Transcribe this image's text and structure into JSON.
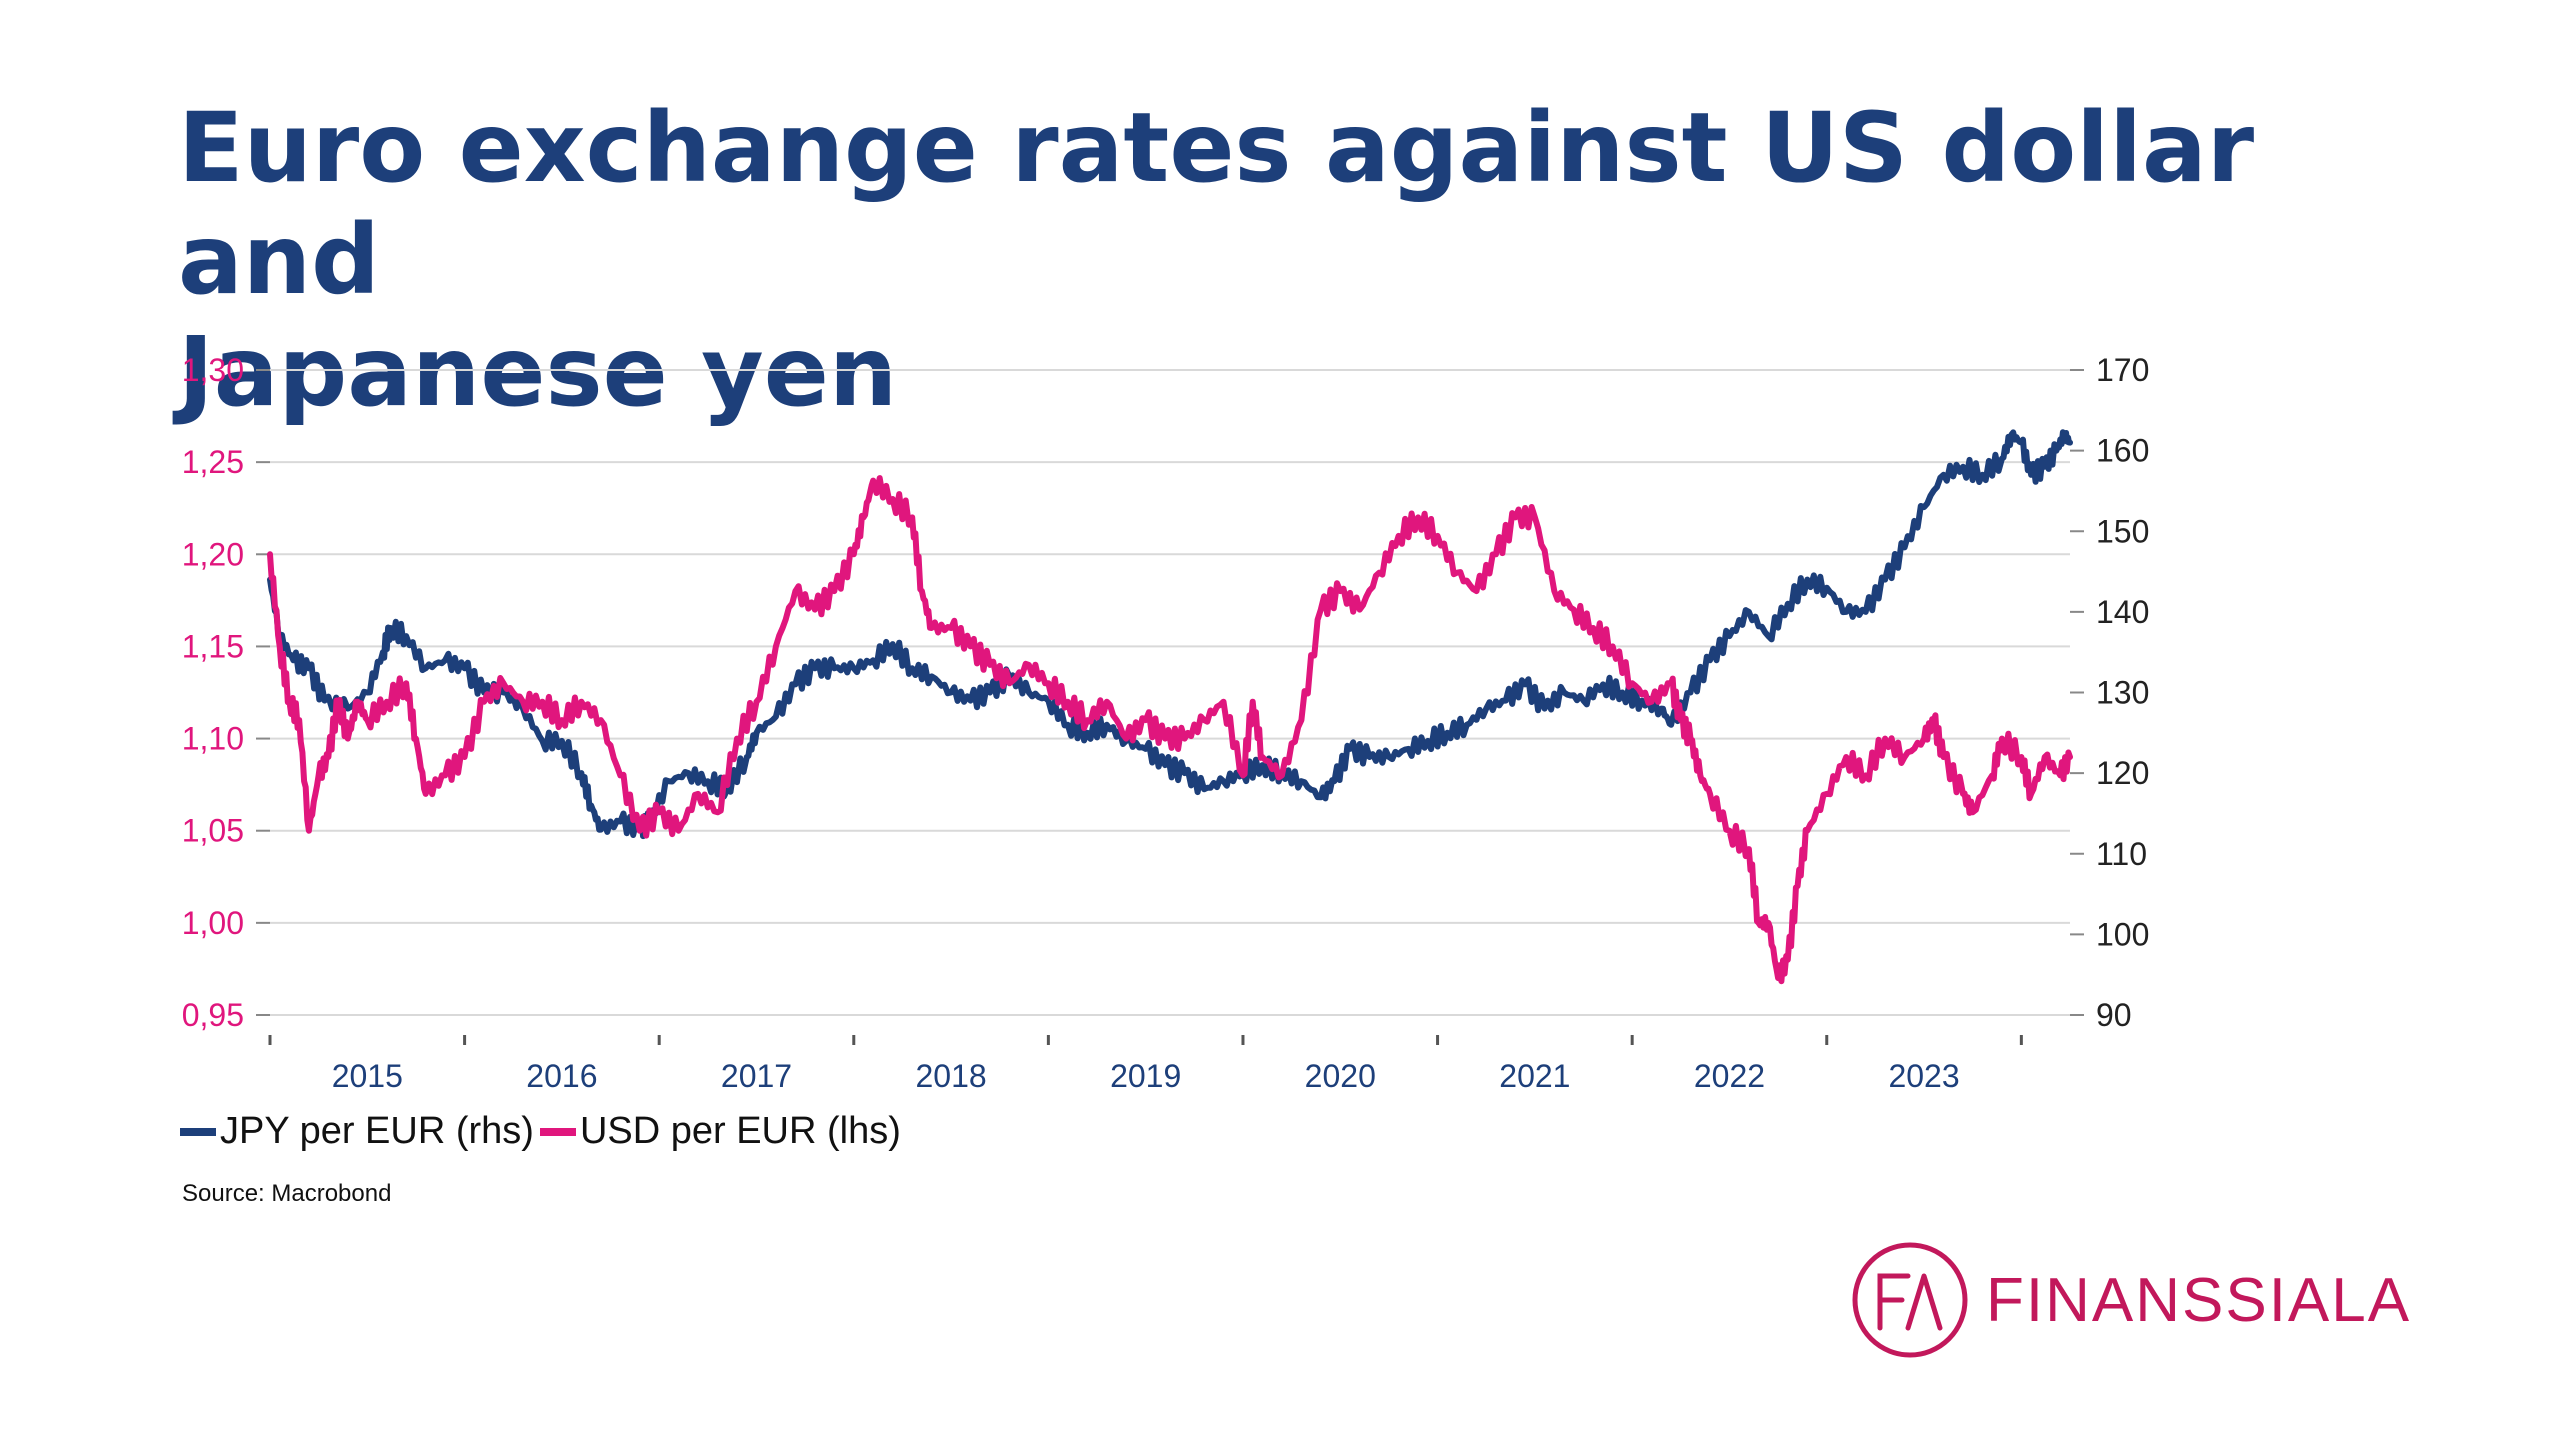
{
  "title_lines": [
    "Euro exchange rates against US dollar and",
    "Japanese yen"
  ],
  "source": "Source: Macrobond",
  "legend": [
    {
      "label": "JPY per EUR (rhs)",
      "color": "#1d3f7a"
    },
    {
      "label": "USD per EUR (lhs)",
      "color": "#e0167d"
    }
  ],
  "logo": {
    "text": "FINANSSIALA",
    "mark": "FA",
    "color": "#c2185b"
  },
  "chart_data": {
    "type": "line",
    "title": "Euro exchange rates against US dollar and Japanese yen",
    "x_range": [
      2014.5,
      2023.75
    ],
    "x_ticks": [
      "2015",
      "2016",
      "2017",
      "2018",
      "2019",
      "2020",
      "2021",
      "2022",
      "2023"
    ],
    "left_axis": {
      "min": 0.95,
      "max": 1.3,
      "ticks": [
        "0,95",
        "1,00",
        "1,05",
        "1,10",
        "1,15",
        "1,20",
        "1,25",
        "1,30"
      ]
    },
    "right_axis": {
      "min": 90,
      "max": 170,
      "ticks": [
        "90",
        "100",
        "110",
        "120",
        "130",
        "140",
        "150",
        "160",
        "170"
      ]
    },
    "grid": true,
    "series": [
      {
        "name": "JPY per EUR (rhs)",
        "axis": "right",
        "color": "#1d3f7a",
        "points": [
          [
            2014.5,
            144
          ],
          [
            2014.55,
            137
          ],
          [
            2014.62,
            134
          ],
          [
            2014.7,
            133
          ],
          [
            2014.78,
            129
          ],
          [
            2014.9,
            128
          ],
          [
            2015.0,
            130
          ],
          [
            2015.08,
            135
          ],
          [
            2015.12,
            138
          ],
          [
            2015.2,
            137
          ],
          [
            2015.3,
            133
          ],
          [
            2015.4,
            134
          ],
          [
            2015.5,
            133
          ],
          [
            2015.6,
            130
          ],
          [
            2015.7,
            130
          ],
          [
            2015.8,
            128
          ],
          [
            2015.9,
            124
          ],
          [
            2016.0,
            124
          ],
          [
            2016.1,
            120
          ],
          [
            2016.15,
            116
          ],
          [
            2016.2,
            113
          ],
          [
            2016.3,
            114
          ],
          [
            2016.4,
            113
          ],
          [
            2016.45,
            114
          ],
          [
            2016.55,
            119
          ],
          [
            2016.65,
            120
          ],
          [
            2016.75,
            119
          ],
          [
            2016.85,
            118
          ],
          [
            2016.95,
            122
          ],
          [
            2017.0,
            125
          ],
          [
            2017.1,
            127
          ],
          [
            2017.2,
            131
          ],
          [
            2017.3,
            133
          ],
          [
            2017.4,
            133
          ],
          [
            2017.5,
            133
          ],
          [
            2017.6,
            134
          ],
          [
            2017.7,
            136
          ],
          [
            2017.8,
            133
          ],
          [
            2017.9,
            132
          ],
          [
            2018.0,
            130
          ],
          [
            2018.1,
            129
          ],
          [
            2018.2,
            130
          ],
          [
            2018.3,
            132
          ],
          [
            2018.4,
            130
          ],
          [
            2018.5,
            129
          ],
          [
            2018.6,
            126
          ],
          [
            2018.7,
            125
          ],
          [
            2018.8,
            126
          ],
          [
            2018.9,
            124
          ],
          [
            2019.0,
            123
          ],
          [
            2019.1,
            121
          ],
          [
            2019.2,
            120
          ],
          [
            2019.3,
            118
          ],
          [
            2019.4,
            119
          ],
          [
            2019.5,
            120
          ],
          [
            2019.6,
            121
          ],
          [
            2019.7,
            120
          ],
          [
            2019.8,
            119
          ],
          [
            2019.9,
            117
          ],
          [
            2019.97,
            119
          ],
          [
            2020.05,
            123
          ],
          [
            2020.15,
            122
          ],
          [
            2020.25,
            122
          ],
          [
            2020.35,
            123
          ],
          [
            2020.45,
            124
          ],
          [
            2020.55,
            125
          ],
          [
            2020.65,
            126
          ],
          [
            2020.75,
            128
          ],
          [
            2020.85,
            129
          ],
          [
            2020.95,
            131
          ],
          [
            2021.05,
            128
          ],
          [
            2021.15,
            130
          ],
          [
            2021.25,
            129
          ],
          [
            2021.35,
            131
          ],
          [
            2021.45,
            130
          ],
          [
            2021.55,
            129
          ],
          [
            2021.65,
            128
          ],
          [
            2021.7,
            126
          ],
          [
            2021.8,
            130
          ],
          [
            2021.9,
            134
          ],
          [
            2022.0,
            137
          ],
          [
            2022.1,
            140
          ],
          [
            2022.2,
            137
          ],
          [
            2022.3,
            141
          ],
          [
            2022.4,
            144
          ],
          [
            2022.5,
            143
          ],
          [
            2022.6,
            140
          ],
          [
            2022.7,
            140
          ],
          [
            2022.8,
            144
          ],
          [
            2022.9,
            148
          ],
          [
            2023.0,
            153
          ],
          [
            2023.1,
            157
          ],
          [
            2023.2,
            158
          ],
          [
            2023.3,
            157
          ],
          [
            2023.4,
            159
          ],
          [
            2023.45,
            162
          ],
          [
            2023.5,
            161
          ],
          [
            2023.55,
            157
          ],
          [
            2023.62,
            158
          ],
          [
            2023.68,
            160
          ],
          [
            2023.72,
            162
          ],
          [
            2023.75,
            161
          ]
        ]
      },
      {
        "name": "USD per EUR (lhs)",
        "axis": "left",
        "color": "#e0167d",
        "points": [
          [
            2014.5,
            1.2
          ],
          [
            2014.55,
            1.15
          ],
          [
            2014.6,
            1.12
          ],
          [
            2014.65,
            1.11
          ],
          [
            2014.7,
            1.05
          ],
          [
            2014.75,
            1.08
          ],
          [
            2014.8,
            1.09
          ],
          [
            2014.85,
            1.12
          ],
          [
            2014.9,
            1.1
          ],
          [
            2014.95,
            1.12
          ],
          [
            2015.0,
            1.11
          ],
          [
            2015.1,
            1.12
          ],
          [
            2015.2,
            1.13
          ],
          [
            2015.25,
            1.1
          ],
          [
            2015.3,
            1.07
          ],
          [
            2015.4,
            1.08
          ],
          [
            2015.5,
            1.09
          ],
          [
            2015.6,
            1.12
          ],
          [
            2015.7,
            1.13
          ],
          [
            2015.8,
            1.12
          ],
          [
            2015.9,
            1.12
          ],
          [
            2016.0,
            1.11
          ],
          [
            2016.1,
            1.12
          ],
          [
            2016.2,
            1.11
          ],
          [
            2016.3,
            1.08
          ],
          [
            2016.4,
            1.05
          ],
          [
            2016.5,
            1.06
          ],
          [
            2016.6,
            1.05
          ],
          [
            2016.7,
            1.07
          ],
          [
            2016.8,
            1.06
          ],
          [
            2016.9,
            1.1
          ],
          [
            2017.0,
            1.12
          ],
          [
            2017.1,
            1.15
          ],
          [
            2017.2,
            1.18
          ],
          [
            2017.3,
            1.17
          ],
          [
            2017.4,
            1.18
          ],
          [
            2017.5,
            1.2
          ],
          [
            2017.55,
            1.22
          ],
          [
            2017.6,
            1.24
          ],
          [
            2017.7,
            1.23
          ],
          [
            2017.8,
            1.22
          ],
          [
            2017.85,
            1.18
          ],
          [
            2017.9,
            1.16
          ],
          [
            2018.0,
            1.16
          ],
          [
            2018.1,
            1.15
          ],
          [
            2018.2,
            1.14
          ],
          [
            2018.3,
            1.13
          ],
          [
            2018.4,
            1.14
          ],
          [
            2018.5,
            1.13
          ],
          [
            2018.6,
            1.12
          ],
          [
            2018.7,
            1.11
          ],
          [
            2018.8,
            1.12
          ],
          [
            2018.9,
            1.1
          ],
          [
            2019.0,
            1.11
          ],
          [
            2019.1,
            1.1
          ],
          [
            2019.2,
            1.1
          ],
          [
            2019.3,
            1.11
          ],
          [
            2019.4,
            1.12
          ],
          [
            2019.5,
            1.08
          ],
          [
            2019.55,
            1.12
          ],
          [
            2019.6,
            1.09
          ],
          [
            2019.7,
            1.08
          ],
          [
            2019.8,
            1.11
          ],
          [
            2019.9,
            1.17
          ],
          [
            2020.0,
            1.18
          ],
          [
            2020.1,
            1.17
          ],
          [
            2020.2,
            1.19
          ],
          [
            2020.3,
            1.21
          ],
          [
            2020.4,
            1.22
          ],
          [
            2020.5,
            1.21
          ],
          [
            2020.6,
            1.19
          ],
          [
            2020.7,
            1.18
          ],
          [
            2020.8,
            1.2
          ],
          [
            2020.9,
            1.22
          ],
          [
            2021.0,
            1.22
          ],
          [
            2021.1,
            1.18
          ],
          [
            2021.2,
            1.17
          ],
          [
            2021.3,
            1.16
          ],
          [
            2021.4,
            1.15
          ],
          [
            2021.5,
            1.13
          ],
          [
            2021.6,
            1.12
          ],
          [
            2021.7,
            1.13
          ],
          [
            2021.75,
            1.11
          ],
          [
            2021.8,
            1.1
          ],
          [
            2021.85,
            1.08
          ],
          [
            2021.9,
            1.07
          ],
          [
            2022.0,
            1.05
          ],
          [
            2022.1,
            1.04
          ],
          [
            2022.15,
            1.0
          ],
          [
            2022.2,
            1.0
          ],
          [
            2022.25,
            0.97
          ],
          [
            2022.3,
            0.98
          ],
          [
            2022.35,
            1.02
          ],
          [
            2022.4,
            1.05
          ],
          [
            2022.5,
            1.07
          ],
          [
            2022.6,
            1.09
          ],
          [
            2022.7,
            1.08
          ],
          [
            2022.8,
            1.1
          ],
          [
            2022.9,
            1.09
          ],
          [
            2023.0,
            1.1
          ],
          [
            2023.05,
            1.11
          ],
          [
            2023.1,
            1.09
          ],
          [
            2023.2,
            1.07
          ],
          [
            2023.25,
            1.06
          ],
          [
            2023.35,
            1.08
          ],
          [
            2023.4,
            1.1
          ],
          [
            2023.5,
            1.09
          ],
          [
            2023.55,
            1.07
          ],
          [
            2023.62,
            1.09
          ],
          [
            2023.7,
            1.08
          ],
          [
            2023.75,
            1.09
          ]
        ]
      }
    ]
  }
}
